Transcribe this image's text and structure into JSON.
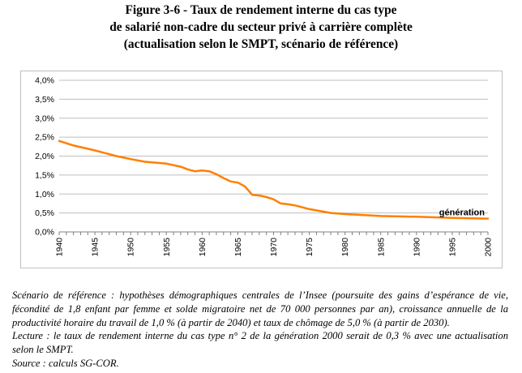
{
  "figure": {
    "title_lines": [
      "Figure 3-6 - Taux de rendement interne du cas type",
      "de salarié non-cadre du secteur privé à carrière complète",
      "(actualisation selon le SMPT, scénario de référence)"
    ]
  },
  "chart_data": {
    "type": "line",
    "title": "Taux de rendement interne du cas type de salarié non-cadre du secteur privé à carrière complète",
    "xlabel": "",
    "ylabel": "",
    "x": [
      1940,
      1942,
      1945,
      1948,
      1950,
      1952,
      1955,
      1957,
      1958,
      1959,
      1960,
      1961,
      1962,
      1963,
      1964,
      1965,
      1966,
      1967,
      1968,
      1969,
      1970,
      1971,
      1972,
      1973,
      1975,
      1978,
      1980,
      1985,
      1990,
      1995,
      2000
    ],
    "series": [
      {
        "name": "génération",
        "color": "#ff7f00",
        "values": [
          2.4,
          2.28,
          2.15,
          2.0,
          1.92,
          1.85,
          1.8,
          1.72,
          1.65,
          1.6,
          1.62,
          1.6,
          1.52,
          1.42,
          1.33,
          1.3,
          1.2,
          0.98,
          0.96,
          0.92,
          0.86,
          0.75,
          0.73,
          0.7,
          0.6,
          0.5,
          0.47,
          0.42,
          0.4,
          0.37,
          0.35
        ]
      }
    ],
    "ylim": [
      0,
      4.0
    ],
    "y_ticks": [
      "0,0%",
      "0,5%",
      "1,0%",
      "1,5%",
      "2,0%",
      "2,5%",
      "3,0%",
      "3,5%",
      "4,0%"
    ],
    "xlim": [
      1940,
      2000
    ],
    "x_ticks": [
      "1940",
      "1945",
      "1950",
      "1955",
      "1960",
      "1965",
      "1970",
      "1975",
      "1980",
      "1985",
      "1990",
      "1995",
      "2000"
    ],
    "grid": true,
    "series_label_text": "génération"
  },
  "notes": {
    "scenario": "Scénario de référence : hypothèses démographiques centrales de l’Insee (poursuite des gains d’espérance de vie, fécondité de 1,8 enfant par femme et solde migratoire net de 70 000 personnes par an), croissance annuelle de la productivité horaire du travail de 1,0 % (à partir de 2040) et taux de chômage de 5,0 % (à partir de 2030).",
    "lecture": "Lecture : le taux de rendement interne du cas type n° 2 de la génération 2000 serait de 0,3 % avec une actualisation selon le SMPT.",
    "source": "Source : calculs SG-COR."
  }
}
